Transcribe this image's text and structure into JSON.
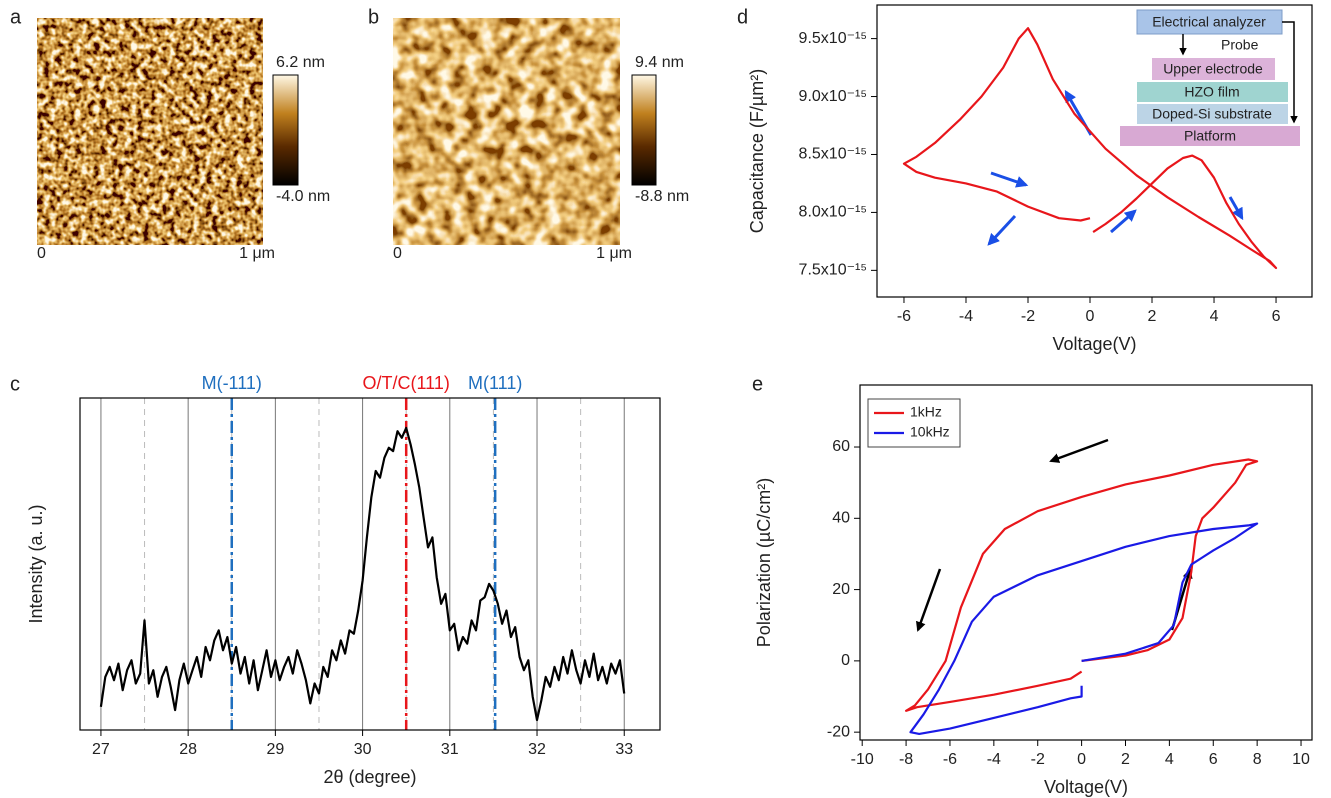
{
  "images": [
    {
      "panel": "a",
      "scale_max": "6.2 nm",
      "scale_min": "-4.0 nm",
      "x_start": "0",
      "x_end": "1 μm"
    },
    {
      "panel": "b",
      "scale_max": "9.4 nm",
      "scale_min": "-8.8 nm",
      "x_start": "0",
      "x_end": "1 μm"
    }
  ],
  "chart_data": [
    {
      "type": "line",
      "panel": "c",
      "x_label": "2θ (degree)",
      "y_label": "Intensity (a. u.)",
      "xlim": [
        26.76,
        33.41
      ],
      "ylim": [
        0,
        100
      ],
      "xticks": [
        27,
        28,
        29,
        30,
        31,
        32,
        33
      ],
      "grid": true,
      "minor_grid": [
        27.5,
        28.5,
        29.5,
        30.5,
        31.5,
        32.5
      ],
      "reference_lines": [
        {
          "x": 28.5,
          "label": "M(-111)",
          "color": "#1f6fbf"
        },
        {
          "x": 30.5,
          "label": "O/T/C(111)",
          "color": "#e8161b"
        },
        {
          "x": 31.52,
          "label": "M(111)",
          "color": "#1f6fbf"
        }
      ],
      "series": [
        {
          "color": "#000000",
          "x": [
            27,
            27.05,
            27.1,
            27.15,
            27.2,
            27.25,
            27.3,
            27.35,
            27.4,
            27.45,
            27.5,
            27.55,
            27.6,
            27.65,
            27.7,
            27.75,
            27.8,
            27.85,
            27.9,
            27.95,
            28,
            28.05,
            28.1,
            28.15,
            28.2,
            28.25,
            28.3,
            28.35,
            28.4,
            28.45,
            28.5,
            28.55,
            28.6,
            28.65,
            28.7,
            28.75,
            28.8,
            28.85,
            28.9,
            28.95,
            29,
            29.05,
            29.1,
            29.15,
            29.2,
            29.25,
            29.3,
            29.35,
            29.4,
            29.45,
            29.5,
            29.55,
            29.6,
            29.65,
            29.7,
            29.75,
            29.8,
            29.85,
            29.9,
            29.95,
            30,
            30.05,
            30.1,
            30.15,
            30.2,
            30.25,
            30.3,
            30.35,
            30.4,
            30.45,
            30.5,
            30.55,
            30.6,
            30.65,
            30.7,
            30.75,
            30.8,
            30.85,
            30.9,
            30.95,
            31,
            31.05,
            31.1,
            31.15,
            31.2,
            31.25,
            31.3,
            31.35,
            31.4,
            31.45,
            31.5,
            31.55,
            31.6,
            31.65,
            31.7,
            31.75,
            31.8,
            31.85,
            31.9,
            31.95,
            32,
            32.05,
            32.1,
            32.15,
            32.2,
            32.25,
            32.3,
            32.35,
            32.4,
            32.45,
            32.5,
            32.55,
            32.6,
            32.65,
            32.7,
            32.75,
            32.8,
            32.85,
            32.9,
            32.95,
            33
          ],
          "values": [
            7,
            16,
            19,
            15,
            20,
            12,
            18,
            21,
            14,
            17,
            33,
            14,
            18,
            10,
            16,
            19,
            13,
            6,
            15,
            20,
            14,
            18,
            22,
            16,
            25,
            21,
            27,
            30,
            24,
            28,
            20,
            25,
            17,
            22,
            14,
            21,
            12,
            18,
            24,
            16,
            21,
            15,
            19,
            22,
            17,
            24,
            20,
            15,
            8,
            14,
            11,
            19,
            16,
            24,
            21,
            27,
            23,
            30,
            29,
            36,
            45,
            58,
            70,
            78,
            76,
            82,
            85,
            84,
            90,
            88,
            91,
            86,
            80,
            73,
            64,
            55,
            58,
            46,
            38,
            41,
            30,
            32,
            24,
            28,
            26,
            33,
            30,
            39,
            40,
            44,
            42,
            38,
            32,
            36,
            28,
            31,
            22,
            18,
            21,
            10,
            3,
            9,
            16,
            13,
            19,
            15,
            22,
            17,
            24,
            18,
            14,
            21,
            16,
            23,
            15,
            19,
            14,
            20,
            17,
            21,
            11
          ]
        }
      ]
    },
    {
      "type": "line",
      "panel": "d",
      "x_label": "Voltage(V)",
      "y_label": "Capacitance (F/µm²)",
      "xlim": [
        -6.87,
        7.16
      ],
      "ylim": [
        7.27e-15,
        9.79e-15
      ],
      "xticks": [
        -6,
        -4,
        -2,
        0,
        2,
        4,
        6
      ],
      "yticks": [
        {
          "value": 7.5e-15,
          "label": "7.5x10⁻¹⁵"
        },
        {
          "value": 8e-15,
          "label": "8.0x10⁻¹⁵"
        },
        {
          "value": 8.5e-15,
          "label": "8.5x10⁻¹⁵"
        },
        {
          "value": 9e-15,
          "label": "9.0x10⁻¹⁵"
        },
        {
          "value": 9.5e-15,
          "label": "9.5x10⁻¹⁵"
        }
      ],
      "grid": false,
      "inset": {
        "boxes": [
          "Electrical analyzer",
          "Upper electrode",
          "HZO film",
          "Doped-Si substrate",
          "Platform"
        ],
        "probe": "Probe"
      },
      "series": [
        {
          "color": "#e8161b",
          "x": [
            0.1,
            0.5,
            1,
            1.5,
            2,
            2.5,
            3,
            3.3,
            3.6,
            4,
            4.4,
            4.8,
            5.2,
            5.6,
            6,
            5.8,
            5.2,
            4.5,
            3.5,
            2.5,
            1.5,
            0.5,
            -0.5,
            -1.2,
            -1.7,
            -2,
            -2.3,
            -2.8,
            -3.5,
            -4.2,
            -5,
            -5.6,
            -6,
            -5.6,
            -5,
            -4,
            -3,
            -2,
            -1,
            -0.3,
            0
          ],
          "values": [
            7.83e-15,
            7.9e-15,
            8e-15,
            8.12e-15,
            8.25e-15,
            8.38e-15,
            8.47e-15,
            8.49e-15,
            8.45e-15,
            8.3e-15,
            8.08e-15,
            7.9e-15,
            7.75e-15,
            7.62e-15,
            7.52e-15,
            7.58e-15,
            7.68e-15,
            7.8e-15,
            7.96e-15,
            8.13e-15,
            8.32e-15,
            8.55e-15,
            8.85e-15,
            9.15e-15,
            9.45e-15,
            9.59e-15,
            9.5e-15,
            9.25e-15,
            9e-15,
            8.8e-15,
            8.6e-15,
            8.48e-15,
            8.42e-15,
            8.35e-15,
            8.3e-15,
            8.25e-15,
            8.18e-15,
            8.05e-15,
            7.95e-15,
            7.93e-15,
            7.95e-15
          ]
        }
      ]
    },
    {
      "type": "line",
      "panel": "e",
      "x_label": "Voltage(V)",
      "y_label": "Polarization (µC/cm²)",
      "xlim": [
        -10.1,
        10.5
      ],
      "ylim": [
        -22.2,
        77.4
      ],
      "xticks": [
        -10,
        -8,
        -6,
        -4,
        -2,
        0,
        2,
        4,
        6,
        8,
        10
      ],
      "yticks": [
        -20,
        0,
        20,
        40,
        60
      ],
      "grid": false,
      "legend": "upper left",
      "series": [
        {
          "name": "1kHz",
          "color": "#e8161b",
          "x": [
            0,
            2,
            3,
            4,
            4.6,
            5,
            5.2,
            5.5,
            6,
            7,
            7.5,
            8,
            7.6,
            6,
            4,
            2,
            0,
            -2,
            -3.5,
            -4.5,
            -5.5,
            -6.2,
            -7,
            -7.6,
            -8,
            -7.5,
            -6,
            -4,
            -2,
            -0.5,
            0
          ],
          "values": [
            0,
            1.5,
            3,
            6,
            12,
            25,
            35,
            40,
            43,
            50,
            55,
            56,
            56.5,
            55,
            52,
            49.5,
            46,
            42,
            37,
            30,
            15,
            0,
            -8,
            -12.5,
            -14,
            -13,
            -11.5,
            -9.5,
            -7,
            -5,
            -3
          ]
        },
        {
          "name": "10kHz",
          "color": "#1a1ae6",
          "x": [
            0,
            2,
            3.5,
            4.2,
            4.6,
            5,
            5.5,
            6,
            7,
            7.6,
            8,
            7.6,
            6,
            4,
            2,
            0,
            -2,
            -4,
            -5,
            -5.8,
            -6.5,
            -7.2,
            -7.8,
            -7.4,
            -6,
            -4,
            -2,
            -0.5,
            0,
            0
          ],
          "values": [
            0,
            2,
            5,
            10,
            22,
            27,
            29,
            31,
            34.5,
            37,
            38.5,
            38,
            37,
            35,
            32,
            28,
            24,
            18,
            11,
            0,
            -8,
            -15,
            -20,
            -20.5,
            -19,
            -16,
            -13,
            -10.5,
            -10,
            -7
          ]
        }
      ]
    }
  ]
}
